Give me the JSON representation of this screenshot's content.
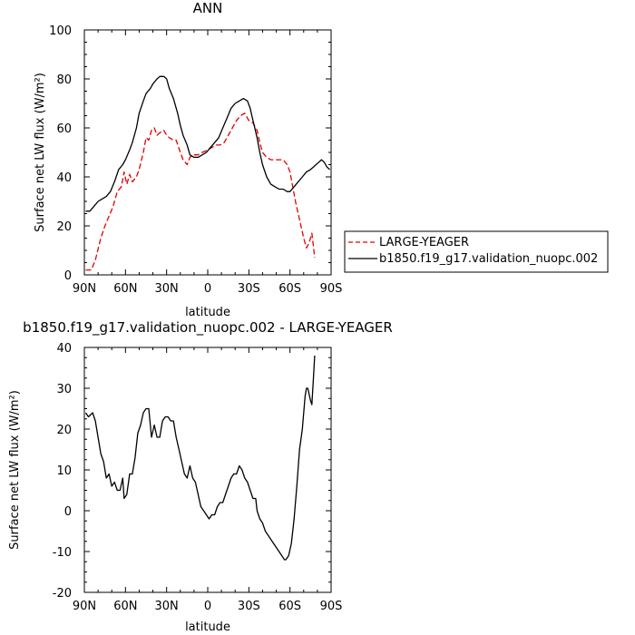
{
  "chart_data": [
    {
      "type": "line",
      "title": "ANN",
      "xlabel": "latitude",
      "ylabel": "Surface net LW flux (W/m²)",
      "xlim": [
        90,
        -90
      ],
      "ylim": [
        0,
        100
      ],
      "x_note": "x values are latitude in degrees; positive = N, negative = S",
      "xticks": [
        {
          "value": 90,
          "label": "90N"
        },
        {
          "value": 60,
          "label": "60N"
        },
        {
          "value": 30,
          "label": "30N"
        },
        {
          "value": 0,
          "label": "0"
        },
        {
          "value": -30,
          "label": "30S"
        },
        {
          "value": -60,
          "label": "60S"
        },
        {
          "value": -90,
          "label": "90S"
        }
      ],
      "yticks": [
        0,
        20,
        40,
        60,
        80,
        100
      ],
      "legend_position": "right",
      "series": [
        {
          "name": "LARGE-YEAGER",
          "color": "#e00000",
          "dash": "dashed",
          "points": [
            [
              89,
              2
            ],
            [
              85,
              2
            ],
            [
              82,
              6
            ],
            [
              78,
              15
            ],
            [
              75,
              20
            ],
            [
              72,
              24
            ],
            [
              69,
              28
            ],
            [
              66,
              34
            ],
            [
              63,
              36
            ],
            [
              61,
              42
            ],
            [
              59,
              37
            ],
            [
              57,
              41
            ],
            [
              55,
              38
            ],
            [
              52,
              40
            ],
            [
              50,
              43
            ],
            [
              47,
              50
            ],
            [
              45,
              56
            ],
            [
              43,
              55
            ],
            [
              41,
              59
            ],
            [
              39,
              60
            ],
            [
              37,
              57
            ],
            [
              35,
              58
            ],
            [
              32,
              59
            ],
            [
              30,
              57
            ],
            [
              28,
              56
            ],
            [
              25,
              55
            ],
            [
              23,
              55
            ],
            [
              20,
              50
            ],
            [
              18,
              47
            ],
            [
              15,
              45
            ],
            [
              13,
              48
            ],
            [
              11,
              49
            ],
            [
              9,
              49
            ],
            [
              7,
              49
            ],
            [
              4,
              50
            ],
            [
              0,
              51
            ],
            [
              -3,
              52
            ],
            [
              -6,
              53
            ],
            [
              -9,
              53
            ],
            [
              -12,
              54
            ],
            [
              -15,
              57
            ],
            [
              -18,
              60
            ],
            [
              -21,
              63
            ],
            [
              -24,
              65
            ],
            [
              -27,
              66
            ],
            [
              -30,
              63
            ],
            [
              -33,
              62
            ],
            [
              -36,
              59
            ],
            [
              -38,
              54
            ],
            [
              -40,
              50
            ],
            [
              -43,
              48
            ],
            [
              -46,
              47
            ],
            [
              -49,
              47
            ],
            [
              -52,
              47
            ],
            [
              -55,
              47
            ],
            [
              -58,
              45
            ],
            [
              -60,
              42
            ],
            [
              -62,
              36
            ],
            [
              -64,
              30
            ],
            [
              -66,
              25
            ],
            [
              -68,
              20
            ],
            [
              -70,
              15
            ],
            [
              -72,
              11
            ],
            [
              -74,
              13
            ],
            [
              -76,
              17
            ],
            [
              -77,
              12
            ],
            [
              -78,
              7
            ]
          ]
        },
        {
          "name": "b1850.f19_g17.validation_nuopc.002",
          "color": "#000000",
          "dash": "solid",
          "points": [
            [
              89,
              26
            ],
            [
              86,
              26
            ],
            [
              83,
              28
            ],
            [
              80,
              30
            ],
            [
              77,
              31
            ],
            [
              74,
              32
            ],
            [
              71,
              34
            ],
            [
              68,
              38
            ],
            [
              65,
              43
            ],
            [
              62,
              45
            ],
            [
              60,
              47
            ],
            [
              57,
              51
            ],
            [
              55,
              54
            ],
            [
              52,
              60
            ],
            [
              50,
              66
            ],
            [
              47,
              71
            ],
            [
              45,
              74
            ],
            [
              42,
              76
            ],
            [
              40,
              78
            ],
            [
              37,
              80
            ],
            [
              35,
              81
            ],
            [
              32,
              81
            ],
            [
              30,
              80
            ],
            [
              28,
              76
            ],
            [
              25,
              72
            ],
            [
              22,
              66
            ],
            [
              20,
              61
            ],
            [
              18,
              57
            ],
            [
              15,
              53
            ],
            [
              13,
              49
            ],
            [
              10,
              48
            ],
            [
              7,
              48
            ],
            [
              4,
              49
            ],
            [
              1,
              50
            ],
            [
              -2,
              52
            ],
            [
              -5,
              54
            ],
            [
              -8,
              56
            ],
            [
              -11,
              60
            ],
            [
              -14,
              64
            ],
            [
              -17,
              68
            ],
            [
              -20,
              70
            ],
            [
              -23,
              71
            ],
            [
              -26,
              72
            ],
            [
              -29,
              71
            ],
            [
              -31,
              68
            ],
            [
              -33,
              63
            ],
            [
              -36,
              56
            ],
            [
              -38,
              50
            ],
            [
              -40,
              45
            ],
            [
              -43,
              40
            ],
            [
              -46,
              37
            ],
            [
              -49,
              36
            ],
            [
              -52,
              35
            ],
            [
              -55,
              35
            ],
            [
              -58,
              34
            ],
            [
              -60,
              34
            ],
            [
              -63,
              36
            ],
            [
              -66,
              38
            ],
            [
              -69,
              40
            ],
            [
              -72,
              42
            ],
            [
              -75,
              43
            ],
            [
              -77,
              44
            ],
            [
              -79,
              45
            ],
            [
              -81,
              46
            ],
            [
              -83,
              47
            ],
            [
              -85,
              46
            ],
            [
              -87,
              44
            ],
            [
              -89,
              43
            ]
          ]
        }
      ]
    },
    {
      "type": "line",
      "title": "b1850.f19_g17.validation_nuopc.002 - LARGE-YEAGER",
      "xlabel": "latitude",
      "ylabel": "Surface net LW flux (W/m²)",
      "xlim": [
        90,
        -90
      ],
      "ylim": [
        -20,
        40
      ],
      "xticks": [
        {
          "value": 90,
          "label": "90N"
        },
        {
          "value": 60,
          "label": "60N"
        },
        {
          "value": 30,
          "label": "30N"
        },
        {
          "value": 0,
          "label": "0"
        },
        {
          "value": -30,
          "label": "30S"
        },
        {
          "value": -60,
          "label": "60S"
        },
        {
          "value": -90,
          "label": "90S"
        }
      ],
      "yticks": [
        -20,
        -10,
        0,
        10,
        20,
        30,
        40
      ],
      "series": [
        {
          "name": "",
          "color": "#000000",
          "dash": "solid",
          "points": [
            [
              89,
              24
            ],
            [
              87,
              23
            ],
            [
              84,
              24
            ],
            [
              82,
              22
            ],
            [
              80,
              18
            ],
            [
              78,
              14
            ],
            [
              76,
              12
            ],
            [
              74,
              8
            ],
            [
              72,
              9
            ],
            [
              70,
              6
            ],
            [
              68,
              7
            ],
            [
              66,
              5
            ],
            [
              64,
              5
            ],
            [
              62,
              8
            ],
            [
              61,
              3
            ],
            [
              59,
              4
            ],
            [
              57,
              9
            ],
            [
              55,
              9
            ],
            [
              53,
              13
            ],
            [
              51,
              19
            ],
            [
              49,
              21
            ],
            [
              47,
              24
            ],
            [
              45,
              25
            ],
            [
              43,
              25
            ],
            [
              41,
              18
            ],
            [
              39,
              21
            ],
            [
              37,
              18
            ],
            [
              35,
              18
            ],
            [
              33,
              22
            ],
            [
              31,
              23
            ],
            [
              29,
              23
            ],
            [
              27,
              22
            ],
            [
              25,
              22
            ],
            [
              23,
              18
            ],
            [
              21,
              15
            ],
            [
              19,
              12
            ],
            [
              17,
              9
            ],
            [
              15,
              8
            ],
            [
              13,
              11
            ],
            [
              11,
              8
            ],
            [
              9,
              7
            ],
            [
              7,
              4
            ],
            [
              5,
              1
            ],
            [
              3,
              0
            ],
            [
              1,
              -1
            ],
            [
              -1,
              -2
            ],
            [
              -3,
              -1
            ],
            [
              -5,
              -1
            ],
            [
              -7,
              1
            ],
            [
              -9,
              2
            ],
            [
              -11,
              2
            ],
            [
              -13,
              4
            ],
            [
              -15,
              6
            ],
            [
              -17,
              8
            ],
            [
              -19,
              9
            ],
            [
              -21,
              9
            ],
            [
              -23,
              11
            ],
            [
              -25,
              10
            ],
            [
              -27,
              8
            ],
            [
              -29,
              7
            ],
            [
              -31,
              5
            ],
            [
              -33,
              3
            ],
            [
              -35,
              3
            ],
            [
              -36,
              0
            ],
            [
              -38,
              -2
            ],
            [
              -40,
              -3
            ],
            [
              -42,
              -5
            ],
            [
              -44,
              -6
            ],
            [
              -46,
              -7
            ],
            [
              -48,
              -8
            ],
            [
              -50,
              -9
            ],
            [
              -52,
              -10
            ],
            [
              -54,
              -11
            ],
            [
              -56,
              -12
            ],
            [
              -57,
              -12
            ],
            [
              -59,
              -11
            ],
            [
              -61,
              -8
            ],
            [
              -63,
              -2
            ],
            [
              -65,
              6
            ],
            [
              -67,
              15
            ],
            [
              -69,
              20
            ],
            [
              -71,
              28
            ],
            [
              -72,
              30
            ],
            [
              -73,
              30
            ],
            [
              -75,
              27
            ],
            [
              -76,
              26
            ],
            [
              -77,
              32
            ],
            [
              -78,
              38
            ]
          ]
        }
      ]
    }
  ]
}
